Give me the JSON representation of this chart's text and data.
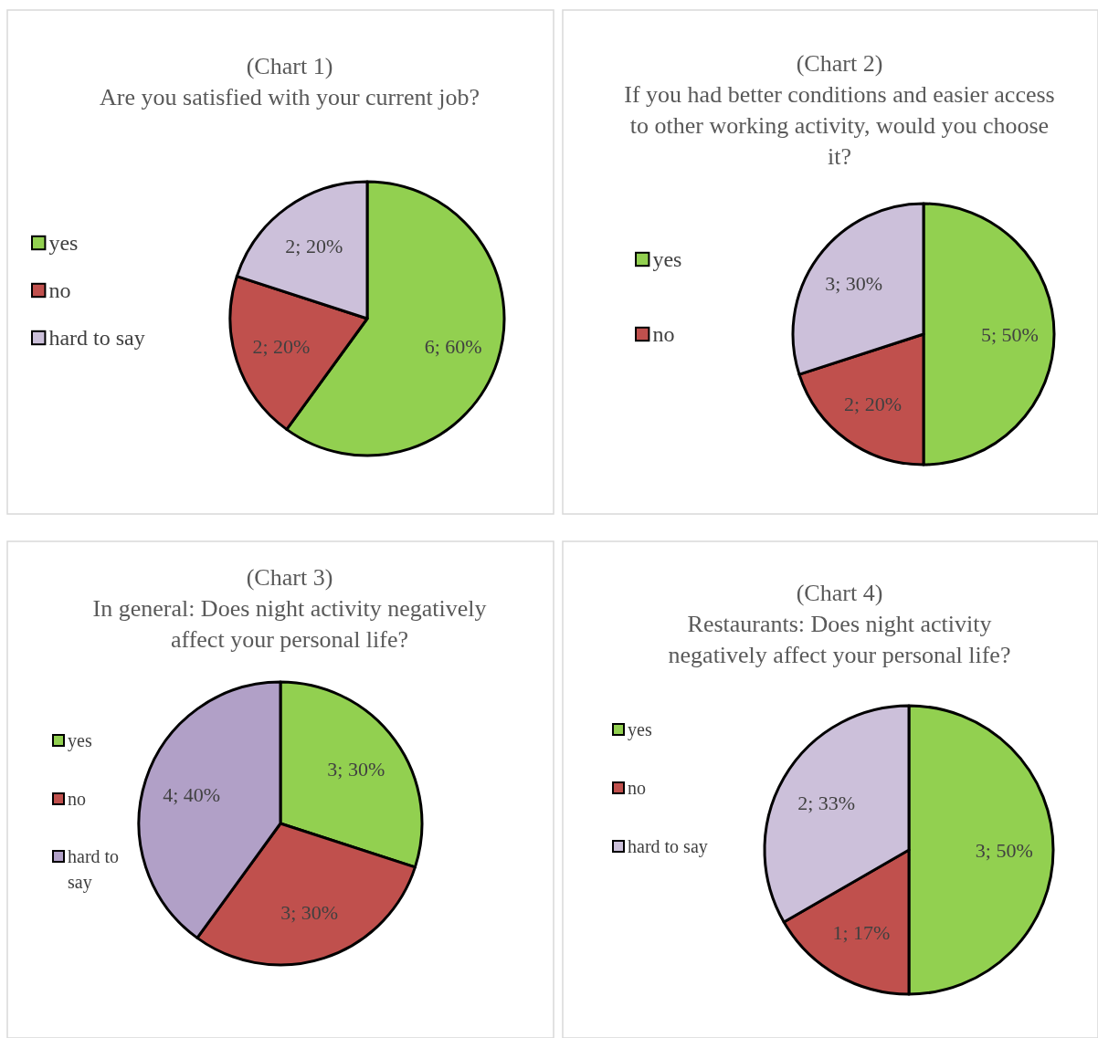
{
  "chart_data": [
    {
      "type": "pie",
      "title": "(Chart 1)",
      "subtitle": "Are you satisfied with your current job?",
      "categories": [
        "yes",
        "no",
        "hard to say"
      ],
      "values": [
        6,
        2,
        2
      ],
      "value_labels": [
        "6; 60%",
        "2; 20%",
        "2; 20%"
      ],
      "colors": [
        "#92d050",
        "#c0504d",
        "#ccc0da"
      ],
      "legend": "left"
    },
    {
      "type": "pie",
      "title": "(Chart 2)",
      "subtitle": "If you had better conditions and easier access to other working activity, would you choose it?",
      "categories": [
        "yes",
        "no",
        null
      ],
      "values": [
        5,
        2,
        3
      ],
      "value_labels": [
        "5; 50%",
        "2; 20%",
        "3; 30%"
      ],
      "colors": [
        "#92d050",
        "#c0504d",
        "#ccc0da"
      ],
      "legend": "left"
    },
    {
      "type": "pie",
      "title": "(Chart 3)",
      "subtitle": "In general: Does night activity negatively affect your personal life?",
      "categories": [
        "yes",
        "no",
        "hard to say"
      ],
      "values": [
        3,
        3,
        4
      ],
      "value_labels": [
        "3; 30%",
        "3; 30%",
        "4; 40%"
      ],
      "colors": [
        "#92d050",
        "#c0504d",
        "#b1a0c7"
      ],
      "legend": "left"
    },
    {
      "type": "pie",
      "title": "(Chart 4)",
      "subtitle": "Restaurants: Does night activity negatively affect your personal life?",
      "categories": [
        "yes",
        "no",
        "hard to say"
      ],
      "values": [
        3,
        1,
        2
      ],
      "value_labels": [
        "3; 50%",
        "1; 17%",
        "2; 33%"
      ],
      "colors": [
        "#92d050",
        "#c0504d",
        "#ccc0da"
      ],
      "legend": "left"
    }
  ]
}
